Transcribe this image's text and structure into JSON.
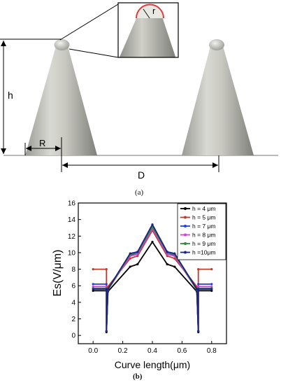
{
  "figure_a": {
    "labels": {
      "h": "h",
      "R": "R",
      "D": "D",
      "r": "r"
    },
    "caption": "(a)",
    "colors": {
      "cone_light": "#d5d5cf",
      "cone_dark": "#8f908a",
      "highlight": "#e53935"
    }
  },
  "figure_b": {
    "caption": "(b)",
    "chart_data": {
      "type": "line",
      "xlabel": "Curve length(μm)",
      "ylabel": "Es(V/μm)",
      "xlim": [
        -0.1,
        0.9
      ],
      "ylim": [
        -1,
        16
      ],
      "xticks": [
        "0.0",
        "0.2",
        "0.4",
        "0.6",
        "0.8"
      ],
      "yticks": [
        "0",
        "2",
        "4",
        "6",
        "8",
        "10",
        "12",
        "14",
        "16"
      ],
      "legend_position": "top-right",
      "x": [
        0.0,
        0.09,
        0.09,
        0.1,
        0.25,
        0.3,
        0.4,
        0.5,
        0.55,
        0.7,
        0.71,
        0.71,
        0.8
      ],
      "series": [
        {
          "name": "h = 4 μm",
          "color": "#000000",
          "values": [
            5.4,
            5.4,
            0.4,
            5.3,
            8.3,
            8.6,
            11.3,
            8.6,
            8.3,
            5.3,
            0.4,
            5.4,
            5.4
          ]
        },
        {
          "name": "h = 5 μm",
          "color": "#c0392b",
          "values": [
            8.0,
            8.0,
            0.5,
            5.9,
            9.3,
            9.6,
            12.7,
            9.6,
            9.3,
            5.9,
            0.5,
            8.0,
            8.0
          ]
        },
        {
          "name": "h = 7 μm",
          "color": "#1f3fe0",
          "values": [
            6.2,
            6.2,
            0.5,
            5.6,
            9.7,
            10.0,
            13.2,
            10.0,
            9.7,
            5.6,
            0.5,
            6.2,
            6.2
          ]
        },
        {
          "name": "h = 8 μm",
          "color": "#d63ce0",
          "values": [
            5.9,
            5.9,
            0.5,
            5.5,
            9.6,
            9.8,
            12.9,
            9.8,
            9.6,
            5.5,
            0.5,
            5.9,
            5.9
          ]
        },
        {
          "name": "h = 9 μm",
          "color": "#2e8b3a",
          "values": [
            5.7,
            5.7,
            0.5,
            5.5,
            9.8,
            10.0,
            13.1,
            10.0,
            9.8,
            5.5,
            0.5,
            5.7,
            5.7
          ]
        },
        {
          "name": "h =10μm",
          "color": "#1a237e",
          "values": [
            5.6,
            5.6,
            0.5,
            5.6,
            9.9,
            10.1,
            13.4,
            10.1,
            9.9,
            5.6,
            0.5,
            5.6,
            5.6
          ]
        }
      ]
    }
  }
}
